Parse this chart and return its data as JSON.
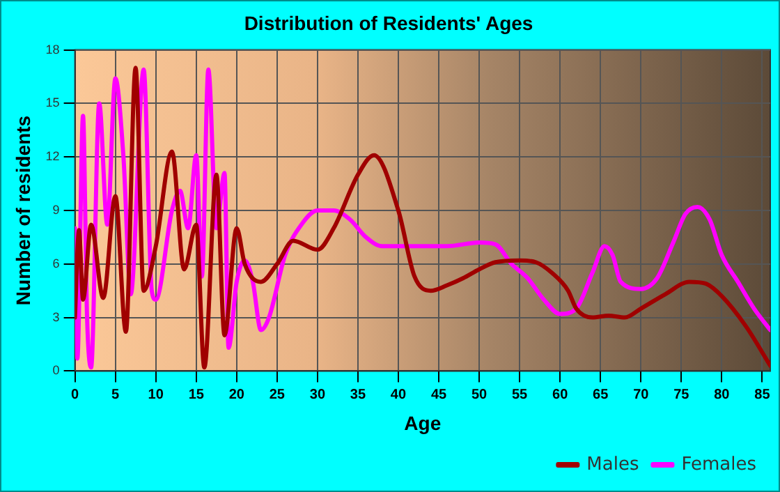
{
  "chart_data": {
    "type": "line",
    "title": "Distribution of Residents' Ages",
    "xlabel": "Age",
    "ylabel": "Number of residents",
    "xlim": [
      0,
      86
    ],
    "xticks": [
      0,
      5,
      10,
      15,
      20,
      25,
      30,
      35,
      40,
      45,
      50,
      55,
      60,
      65,
      70,
      75,
      80,
      85
    ],
    "ylim": [
      0,
      18
    ],
    "yticks": [
      0,
      3,
      6,
      9,
      12,
      15,
      18
    ],
    "grid": true,
    "legend": "bottom right",
    "marker": "none",
    "line_style": "solid",
    "series": [
      {
        "name": "Males",
        "color": "#a00000",
        "x": [
          0,
          0.5,
          1,
          2,
          3.5,
          5,
          6.3,
          7.5,
          8.5,
          10,
          12,
          13.5,
          15,
          16,
          17.5,
          18.5,
          20,
          21,
          23,
          25,
          27,
          30,
          32,
          35,
          37,
          40,
          42,
          44,
          46,
          48,
          50,
          52,
          55,
          57,
          59,
          61,
          62,
          64,
          66,
          68,
          70,
          73,
          76,
          78,
          80,
          83,
          86
        ],
        "values": [
          3,
          7.9,
          4,
          8.2,
          4.1,
          9.8,
          2.2,
          17,
          4.5,
          7,
          12.3,
          5.7,
          8.2,
          0.2,
          11,
          2,
          8,
          6,
          5,
          6,
          7.3,
          6.8,
          8,
          11,
          12.1,
          9,
          5.3,
          4.5,
          4.8,
          5.2,
          5.7,
          6.1,
          6.2,
          6.1,
          5.5,
          4.5,
          3.5,
          3,
          3.1,
          3,
          3.5,
          4.3,
          5,
          4.9,
          4.2,
          2.5,
          0.3
        ]
      },
      {
        "name": "Females",
        "color": "#ff00ff",
        "x": [
          0,
          0.3,
          1,
          1.5,
          2,
          3,
          4,
          5,
          6,
          6.9,
          8.5,
          9.5,
          10,
          12,
          13,
          14,
          15,
          15.7,
          16.5,
          17.5,
          18.5,
          19,
          20,
          21,
          22,
          23,
          24,
          26,
          28,
          30,
          32,
          34,
          36,
          38,
          42,
          46,
          50,
          52,
          54,
          56,
          58,
          60,
          62,
          64,
          65.5,
          66.5,
          67.5,
          70,
          72,
          74,
          75.5,
          77,
          78.5,
          80,
          82,
          84,
          86
        ],
        "values": [
          8,
          0.7,
          14.3,
          3,
          0.2,
          15,
          8.2,
          16.4,
          12,
          4.3,
          16.9,
          4.5,
          4,
          9,
          10.1,
          8,
          12.1,
          5.3,
          16.9,
          8,
          11.1,
          1.3,
          5,
          6.2,
          5,
          2.3,
          3,
          6.5,
          8.2,
          9,
          9,
          8.5,
          7.5,
          7,
          7,
          7,
          7.2,
          7.1,
          6,
          5.2,
          4,
          3.2,
          3.5,
          5.5,
          7,
          6.5,
          5,
          4.6,
          5.2,
          7.2,
          8.8,
          9.2,
          8.5,
          6.5,
          5,
          3.5,
          2.3
        ]
      }
    ]
  }
}
